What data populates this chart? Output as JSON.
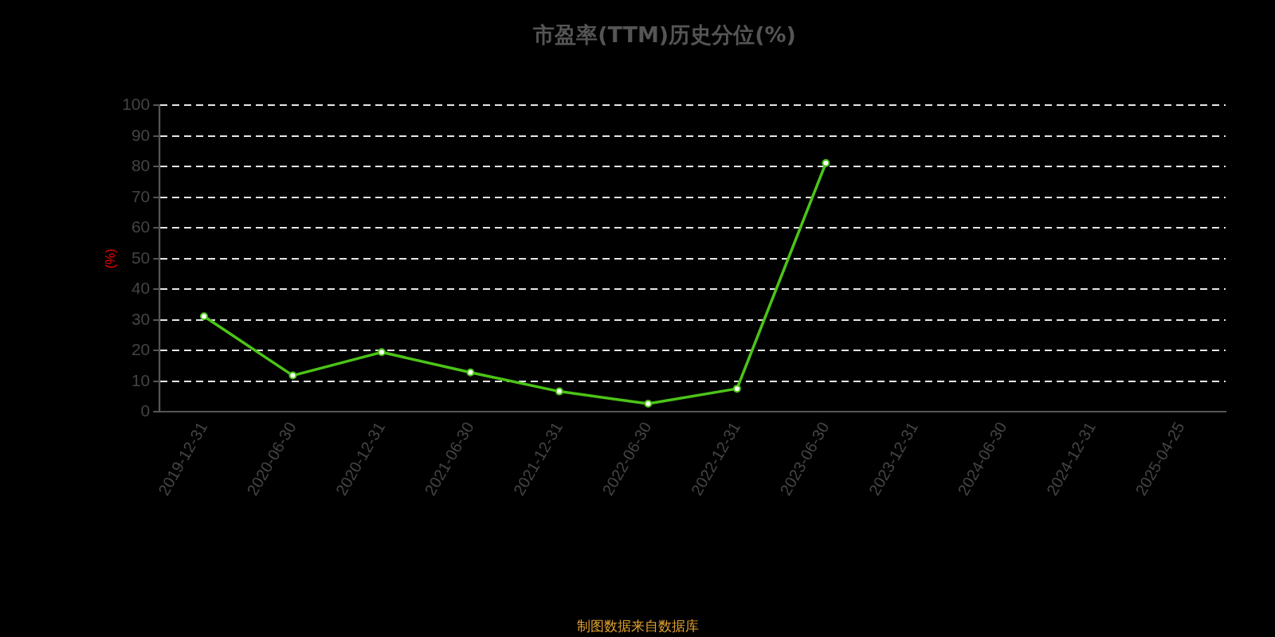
{
  "chart_data": {
    "type": "line",
    "title": "市盈率(TTM)历史分位(%)",
    "ylabel": "(%)",
    "categories": [
      "2019-12-31",
      "2020-06-30",
      "2020-12-31",
      "2021-06-30",
      "2021-12-31",
      "2022-06-30",
      "2022-12-31",
      "2023-06-30",
      "2023-12-31",
      "2024-06-30",
      "2024-12-31",
      "2025-04-25"
    ],
    "series": [
      {
        "color": "#4cc417",
        "values": [
          31.2,
          11.9,
          19.5,
          12.9,
          6.7,
          2.7,
          7.6,
          81.2,
          null,
          null,
          null,
          null
        ]
      }
    ],
    "ylim": [
      0,
      100
    ],
    "yticks": [
      0,
      10,
      20,
      30,
      40,
      50,
      60,
      70,
      80,
      90,
      100
    ],
    "grid": "y",
    "legend": false,
    "marker": "circle",
    "line_style": "solid",
    "annotations": [
      "制图数据来自数据库"
    ]
  }
}
